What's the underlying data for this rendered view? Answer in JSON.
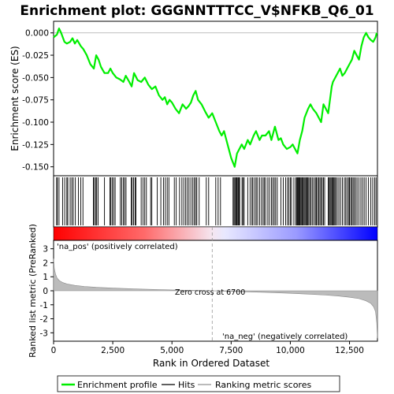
{
  "chart_data": {
    "type": "line",
    "title": "Enrichment plot: GGGNNTTTCC_V$NFKB_Q6_01",
    "xlabel": "Rank in Ordered Dataset",
    "top_panel": {
      "ylabel": "Enrichment score (ES)",
      "ylim": [
        -0.16,
        0.013
      ],
      "yticks": [
        "0.000",
        "-0.025",
        "-0.050",
        "-0.075",
        "-0.100",
        "-0.125",
        "-0.150"
      ],
      "ytick_values": [
        0.0,
        -0.025,
        -0.05,
        -0.075,
        -0.1,
        -0.125,
        -0.15
      ],
      "series": [
        {
          "name": "Enrichment profile",
          "color": "#00ee00",
          "x": [
            0,
            140,
            230,
            320,
            460,
            560,
            700,
            800,
            900,
            1000,
            1150,
            1250,
            1400,
            1550,
            1700,
            1800,
            1900,
            2000,
            2150,
            2300,
            2400,
            2500,
            2650,
            2800,
            2950,
            3050,
            3200,
            3300,
            3400,
            3550,
            3700,
            3850,
            4000,
            4150,
            4300,
            4450,
            4600,
            4700,
            4800,
            4900,
            5000,
            5150,
            5300,
            5450,
            5600,
            5700,
            5800,
            5900,
            6000,
            6100,
            6250,
            6400,
            6550,
            6700,
            6850,
            7000,
            7100,
            7200,
            7350,
            7500,
            7650,
            7750,
            7850,
            7950,
            8050,
            8200,
            8300,
            8450,
            8550,
            8700,
            8800,
            8950,
            9100,
            9200,
            9350,
            9500,
            9600,
            9700,
            9850,
            10000,
            10100,
            10200,
            10300,
            10400,
            10500,
            10600,
            10750,
            10850,
            10950,
            11100,
            11200,
            11300,
            11400,
            11500,
            11600,
            11700,
            11750,
            11800,
            11900,
            12000,
            12100,
            12200,
            12300,
            12400,
            12500,
            12600,
            12700,
            12800,
            12900,
            13000,
            13100,
            13200,
            13300,
            13400,
            13500,
            13600,
            13650
          ],
          "y": [
            -0.005,
            -0.002,
            0.005,
            0.0,
            -0.01,
            -0.012,
            -0.01,
            -0.006,
            -0.012,
            -0.008,
            -0.015,
            -0.018,
            -0.025,
            -0.035,
            -0.04,
            -0.025,
            -0.03,
            -0.038,
            -0.045,
            -0.045,
            -0.04,
            -0.045,
            -0.05,
            -0.052,
            -0.055,
            -0.048,
            -0.055,
            -0.06,
            -0.045,
            -0.053,
            -0.055,
            -0.05,
            -0.058,
            -0.063,
            -0.06,
            -0.07,
            -0.075,
            -0.072,
            -0.08,
            -0.075,
            -0.078,
            -0.085,
            -0.09,
            -0.08,
            -0.085,
            -0.082,
            -0.078,
            -0.07,
            -0.065,
            -0.075,
            -0.08,
            -0.088,
            -0.095,
            -0.09,
            -0.1,
            -0.11,
            -0.115,
            -0.11,
            -0.125,
            -0.14,
            -0.15,
            -0.135,
            -0.13,
            -0.125,
            -0.13,
            -0.12,
            -0.125,
            -0.115,
            -0.11,
            -0.12,
            -0.115,
            -0.115,
            -0.11,
            -0.12,
            -0.105,
            -0.12,
            -0.118,
            -0.125,
            -0.13,
            -0.128,
            -0.125,
            -0.13,
            -0.135,
            -0.12,
            -0.11,
            -0.095,
            -0.085,
            -0.08,
            -0.085,
            -0.09,
            -0.095,
            -0.1,
            -0.08,
            -0.085,
            -0.09,
            -0.07,
            -0.06,
            -0.055,
            -0.05,
            -0.045,
            -0.04,
            -0.048,
            -0.045,
            -0.04,
            -0.035,
            -0.03,
            -0.02,
            -0.025,
            -0.03,
            -0.015,
            -0.005,
            0.0,
            -0.005,
            -0.008,
            -0.01,
            -0.005,
            0.0
          ]
        }
      ]
    },
    "hits_panel": {
      "legend_name": "Hits",
      "hit_positions": [
        130,
        160,
        230,
        380,
        470,
        560,
        600,
        700,
        770,
        830,
        920,
        1050,
        1150,
        1240,
        1680,
        1720,
        1780,
        1820,
        1880,
        2150,
        2380,
        2420,
        2480,
        2540,
        2600,
        2820,
        2880,
        2950,
        3000,
        3060,
        3280,
        3320,
        3380,
        3440,
        3480,
        3700,
        3780,
        3850,
        3920,
        4100,
        4150,
        4380,
        4530,
        4640,
        4720,
        4800,
        4870,
        5100,
        5180,
        5320,
        5420,
        5500,
        5580,
        5650,
        5720,
        5800,
        5880,
        5940,
        6000,
        6050,
        6150,
        6450,
        6550,
        6850,
        6950,
        7050,
        7580,
        7620,
        7660,
        7700,
        7730,
        7760,
        7800,
        7830,
        7860,
        7960,
        8000,
        8050,
        8200,
        8300,
        8380,
        8420,
        8500,
        8560,
        8620,
        8700,
        8780,
        8850,
        8900,
        8960,
        9050,
        9120,
        9200,
        9260,
        9320,
        9380,
        9450,
        9600,
        9700,
        9800,
        9880,
        9940,
        10000,
        10050,
        10150,
        10230,
        10260,
        10300,
        10330,
        10360,
        10390,
        10420,
        10460,
        10500,
        10540,
        10580,
        10620,
        10660,
        10700,
        10740,
        10780,
        10830,
        10880,
        10940,
        11000,
        11060,
        11100,
        11150,
        11200,
        11250,
        11300,
        11350,
        11400,
        11450,
        11600,
        11640,
        11680,
        11720,
        11760,
        11800,
        11840,
        11880,
        11920,
        11980,
        12050,
        12120,
        12200,
        12280,
        12340,
        12400,
        12460,
        12500,
        12550,
        12600,
        12650,
        12700,
        12760,
        12820,
        12900,
        12980,
        13050,
        13120,
        13200,
        13300,
        13400,
        13480,
        13560,
        13620,
        13680
      ]
    },
    "bottom_panel": {
      "ylabel": "Ranked list metric (PreRanked)",
      "ylim": [
        -3.6,
        3.6
      ],
      "yticks": [
        "3",
        "2",
        "1",
        "0",
        "-1",
        "-2",
        "-3"
      ],
      "ytick_values": [
        3,
        2,
        1,
        0,
        -1,
        -2,
        -3
      ],
      "legend_name": "Ranking metric scores",
      "metric_curve": {
        "x": [
          0,
          30,
          80,
          150,
          250,
          400,
          600,
          900,
          1300,
          1800,
          2500,
          3500,
          4500,
          5500,
          6200,
          6700,
          7200,
          8000,
          9000,
          10000,
          10800,
          11500,
          12000,
          12500,
          12900,
          13200,
          13400,
          13520,
          13600,
          13650,
          13680
        ],
        "y": [
          2.3,
          1.6,
          1.2,
          0.9,
          0.72,
          0.58,
          0.47,
          0.38,
          0.31,
          0.25,
          0.19,
          0.13,
          0.08,
          0.04,
          0.02,
          0.0,
          -0.03,
          -0.07,
          -0.12,
          -0.18,
          -0.24,
          -0.31,
          -0.37,
          -0.46,
          -0.56,
          -0.72,
          -0.9,
          -1.15,
          -1.5,
          -2.3,
          -3.4
        ]
      },
      "zero_cross_label": "Zero cross at 6700",
      "zero_cross": 6700,
      "pos_label": "'na_pos' (positively correlated)",
      "neg_label": "'na_neg' (negatively correlated)"
    },
    "x_axis": {
      "range": [
        0,
        13680
      ],
      "ticks": [
        "0",
        "2,500",
        "5,000",
        "7,500",
        "10,000",
        "12,500"
      ],
      "tick_values": [
        0,
        2500,
        5000,
        7500,
        10000,
        12500
      ]
    },
    "legend": {
      "placement": "bottom",
      "items": [
        {
          "label": "Enrichment profile",
          "color": "#00ee00"
        },
        {
          "label": "Hits",
          "color": "#000000"
        },
        {
          "label": "Ranking metric scores",
          "color": "#bbbbbb"
        }
      ]
    },
    "colors": {
      "enrichment_line": "#00ee00",
      "hit_line": "#000000",
      "metric_fill": "#bbbbbb",
      "pos_text": "#cc0000",
      "neg_text": "#0000cc",
      "zero_cross_line": "#999999"
    }
  }
}
